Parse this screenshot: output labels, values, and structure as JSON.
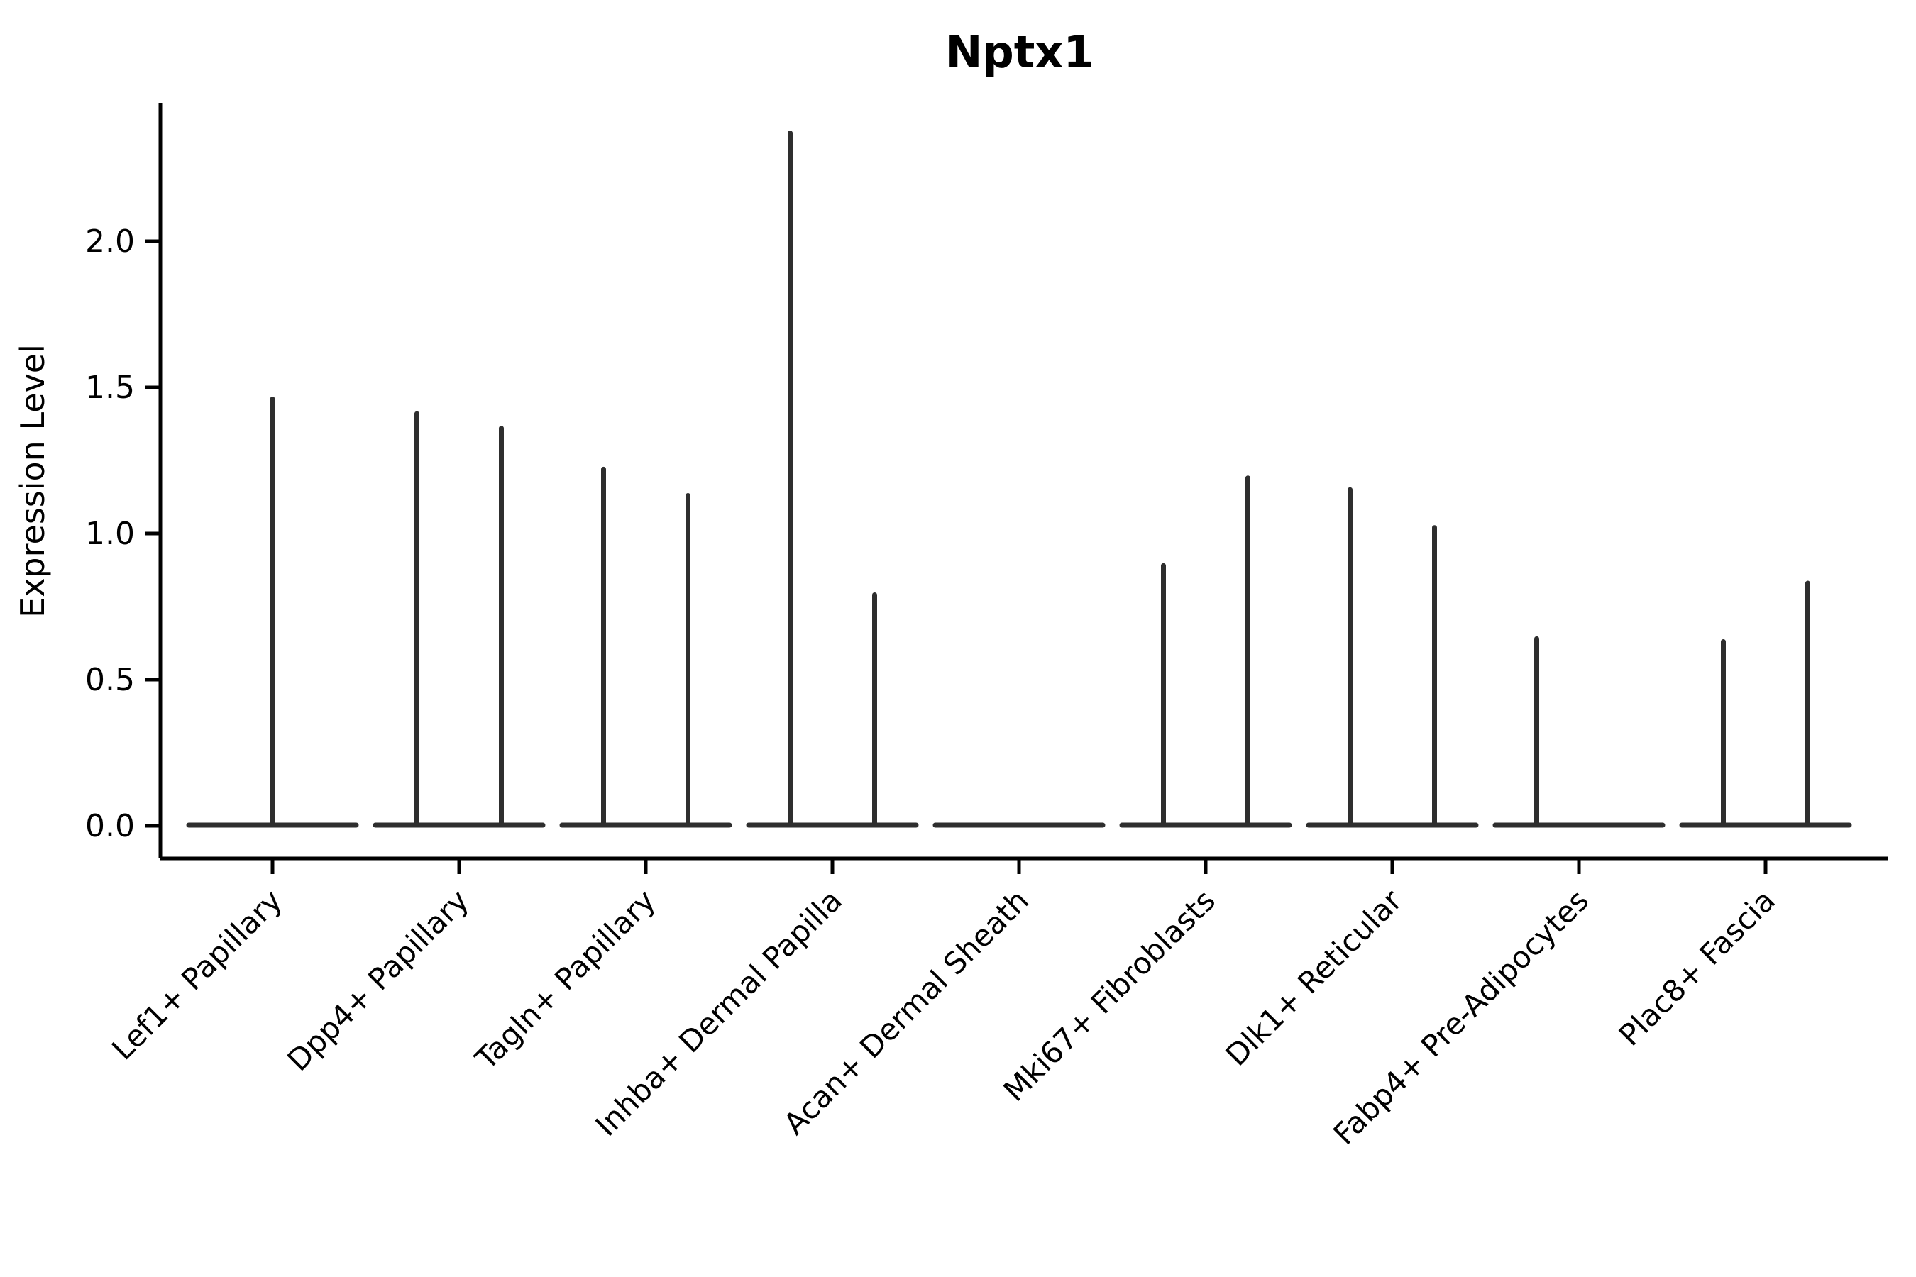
{
  "page": {
    "background": "#ffffff"
  },
  "chart_data": {
    "type": "violin",
    "title": "Nptx1",
    "ylabel": "Expression Level",
    "xlabel": "",
    "grid": false,
    "legend": "none",
    "ink_color": "#2e2e2e",
    "axis_color": "#000000",
    "ylim": [
      -0.11,
      2.47
    ],
    "ytick_labels": [
      "0.0",
      "0.5",
      "1.0",
      "1.5",
      "2.0"
    ],
    "ytick_values": [
      0.0,
      0.5,
      1.0,
      1.5,
      2.0
    ],
    "categories": [
      {
        "label": "Lef1+ Papillary",
        "spikes": [
          {
            "pos": "center",
            "max": 1.46
          }
        ]
      },
      {
        "label": "Dpp4+ Papillary",
        "spikes": [
          {
            "pos": "left",
            "max": 1.41
          },
          {
            "pos": "right",
            "max": 1.36
          }
        ]
      },
      {
        "label": "Tagln+ Papillary",
        "spikes": [
          {
            "pos": "left",
            "max": 1.22
          },
          {
            "pos": "right",
            "max": 1.13
          }
        ]
      },
      {
        "label": "Inhba+ Dermal Papilla",
        "spikes": [
          {
            "pos": "left",
            "max": 2.37
          },
          {
            "pos": "right",
            "max": 0.79
          }
        ]
      },
      {
        "label": "Acan+ Dermal Sheath",
        "spikes": []
      },
      {
        "label": "Mki67+ Fibroblasts",
        "spikes": [
          {
            "pos": "left",
            "max": 0.89
          },
          {
            "pos": "right",
            "max": 1.19
          }
        ]
      },
      {
        "label": "Dlk1+ Reticular",
        "spikes": [
          {
            "pos": "left",
            "max": 1.15
          },
          {
            "pos": "right",
            "max": 1.02
          }
        ]
      },
      {
        "label": "Fabp4+ Pre-Adipocytes",
        "spikes": [
          {
            "pos": "left",
            "max": 0.64
          }
        ]
      },
      {
        "label": "Plac8+ Fascia",
        "spikes": [
          {
            "pos": "left",
            "max": 0.63
          },
          {
            "pos": "right",
            "max": 0.83
          }
        ]
      }
    ]
  }
}
